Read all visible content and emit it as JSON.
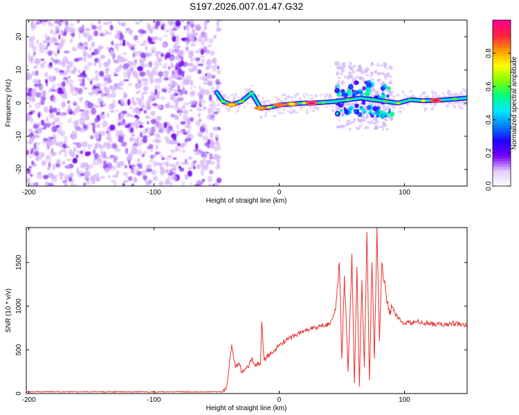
{
  "figure": {
    "title": "S197.2026.007.01.47.G32"
  },
  "chart_data": [
    {
      "type": "heatmap",
      "name": "spectrogram",
      "xlabel": "Height of straight line (km)",
      "ylabel": "Frequency (Hz)",
      "xlim": [
        -202,
        150
      ],
      "ylim": [
        -25,
        25
      ],
      "xticks": [
        -200,
        -100,
        0,
        100
      ],
      "yticks": [
        -20,
        -10,
        0,
        10,
        20
      ],
      "colorbar": {
        "label": "Normalized spectral amplitude",
        "range": [
          0,
          1
        ],
        "ticks": [
          0.0,
          0.2,
          0.4,
          0.6,
          0.8
        ],
        "colormap": [
          "#ffffff",
          "#e4ccff",
          "#7a00ff",
          "#1e00ff",
          "#0080ff",
          "#00e8ff",
          "#00ff80",
          "#80ff00",
          "#ffff00",
          "#ff9900",
          "#ff2040",
          "#ff0090"
        ]
      },
      "noise_region": {
        "x": [
          -202,
          -48
        ],
        "freq": [
          -25,
          25
        ],
        "amplitude": [
          0.0,
          0.15
        ]
      },
      "signal_trace": [
        {
          "x": -50,
          "freq": 3.2,
          "amp": 0.35
        },
        {
          "x": -45,
          "freq": 0.5,
          "amp": 0.5
        },
        {
          "x": -38,
          "freq": -0.5,
          "amp": 0.75
        },
        {
          "x": -30,
          "freq": 0.5,
          "amp": 0.55
        },
        {
          "x": -22,
          "freq": 3.0,
          "amp": 0.45
        },
        {
          "x": -15,
          "freq": -1.5,
          "amp": 0.8
        },
        {
          "x": -8,
          "freq": -1.3,
          "amp": 0.6
        },
        {
          "x": 0,
          "freq": -0.6,
          "amp": 0.85
        },
        {
          "x": 10,
          "freq": -0.3,
          "amp": 0.7
        },
        {
          "x": 20,
          "freq": 0.0,
          "amp": 0.6
        },
        {
          "x": 26,
          "freq": 0.0,
          "amp": 1.0
        },
        {
          "x": 35,
          "freq": 0.2,
          "amp": 0.5
        },
        {
          "x": 45,
          "freq": 0.5,
          "amp": 0.45
        },
        {
          "x": 55,
          "freq": 1.0,
          "amp": 0.5
        },
        {
          "x": 65,
          "freq": 1.5,
          "amp": 0.4
        },
        {
          "x": 75,
          "freq": 1.0,
          "amp": 0.45
        },
        {
          "x": 85,
          "freq": 0.5,
          "amp": 0.5
        },
        {
          "x": 95,
          "freq": 0.0,
          "amp": 0.55
        },
        {
          "x": 105,
          "freq": 1.0,
          "amp": 0.45
        },
        {
          "x": 115,
          "freq": 0.7,
          "amp": 0.6
        },
        {
          "x": 125,
          "freq": 0.8,
          "amp": 0.95
        },
        {
          "x": 140,
          "freq": 1.2,
          "amp": 0.5
        },
        {
          "x": 150,
          "freq": 1.5,
          "amp": 0.45
        }
      ],
      "scatter_region": {
        "x": [
          45,
          90
        ],
        "freq": [
          -8,
          12
        ]
      }
    },
    {
      "type": "line",
      "name": "snr",
      "xlabel": "Height of straight line (km)",
      "ylabel": "SNR (10 * v/v)",
      "xlim": [
        -202,
        150
      ],
      "ylim": [
        0,
        1900
      ],
      "xticks": [
        -200,
        -100,
        0,
        100
      ],
      "yticks": [
        0,
        500,
        1000,
        1500
      ],
      "color": "#e8302c",
      "series": [
        {
          "x": [
            -202,
            -150,
            -100,
            -60,
            -45,
            -42,
            -40,
            -38,
            -35,
            -32,
            -30,
            -25,
            -22,
            -20,
            -15,
            -14,
            -12,
            -10,
            -5,
            0,
            10,
            20,
            30,
            40,
            45,
            48,
            50,
            52,
            55,
            58,
            60,
            62,
            64,
            66,
            68,
            70,
            72,
            74,
            76,
            78,
            80,
            82,
            85,
            88,
            90,
            95,
            100,
            110,
            120,
            130,
            140,
            150
          ],
          "y": [
            20,
            20,
            20,
            20,
            20,
            80,
            300,
            560,
            300,
            350,
            250,
            300,
            400,
            330,
            340,
            820,
            380,
            430,
            460,
            560,
            650,
            720,
            760,
            800,
            950,
            1500,
            400,
            1350,
            250,
            1600,
            120,
            1450,
            80,
            1300,
            300,
            1850,
            150,
            1500,
            400,
            1900,
            600,
            1500,
            1150,
            900,
            1000,
            850,
            800,
            820,
            800,
            790,
            800,
            780
          ]
        }
      ]
    }
  ]
}
